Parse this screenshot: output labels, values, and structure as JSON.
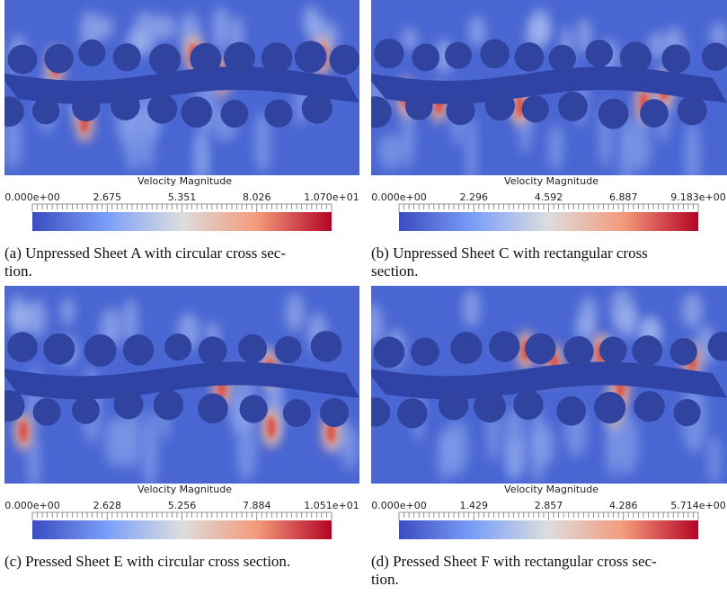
{
  "panels": [
    {
      "colorbar_title": "Velocity Magnitude",
      "colorbar_labels": [
        "0.000e+00",
        "2.675",
        "5.351",
        "8.026",
        "1.070e+01"
      ],
      "caption_lines": [
        "(a) Unpressed Sheet A with circular cross sec-",
        "tion."
      ]
    },
    {
      "colorbar_title": "Velocity Magnitude",
      "colorbar_labels": [
        "0.000e+00",
        "2.296",
        "4.592",
        "6.887",
        "9.183e+00"
      ],
      "caption_lines": [
        "(b) Unpressed Sheet C with rectangular cross",
        "section."
      ]
    },
    {
      "colorbar_title": "Velocity Magnitude",
      "colorbar_labels": [
        "0.000e+00",
        "2.628",
        "5.256",
        "7.884",
        "1.051e+01"
      ],
      "caption_lines": [
        "(c) Pressed Sheet E with circular cross section."
      ]
    },
    {
      "colorbar_title": "Velocity Magnitude",
      "colorbar_labels": [
        "0.000e+00",
        "1.429",
        "2.857",
        "4.286",
        "5.714e+00"
      ],
      "caption_lines": [
        "(d) Pressed Sheet F with rectangular cross sec-",
        "tion."
      ]
    }
  ]
}
